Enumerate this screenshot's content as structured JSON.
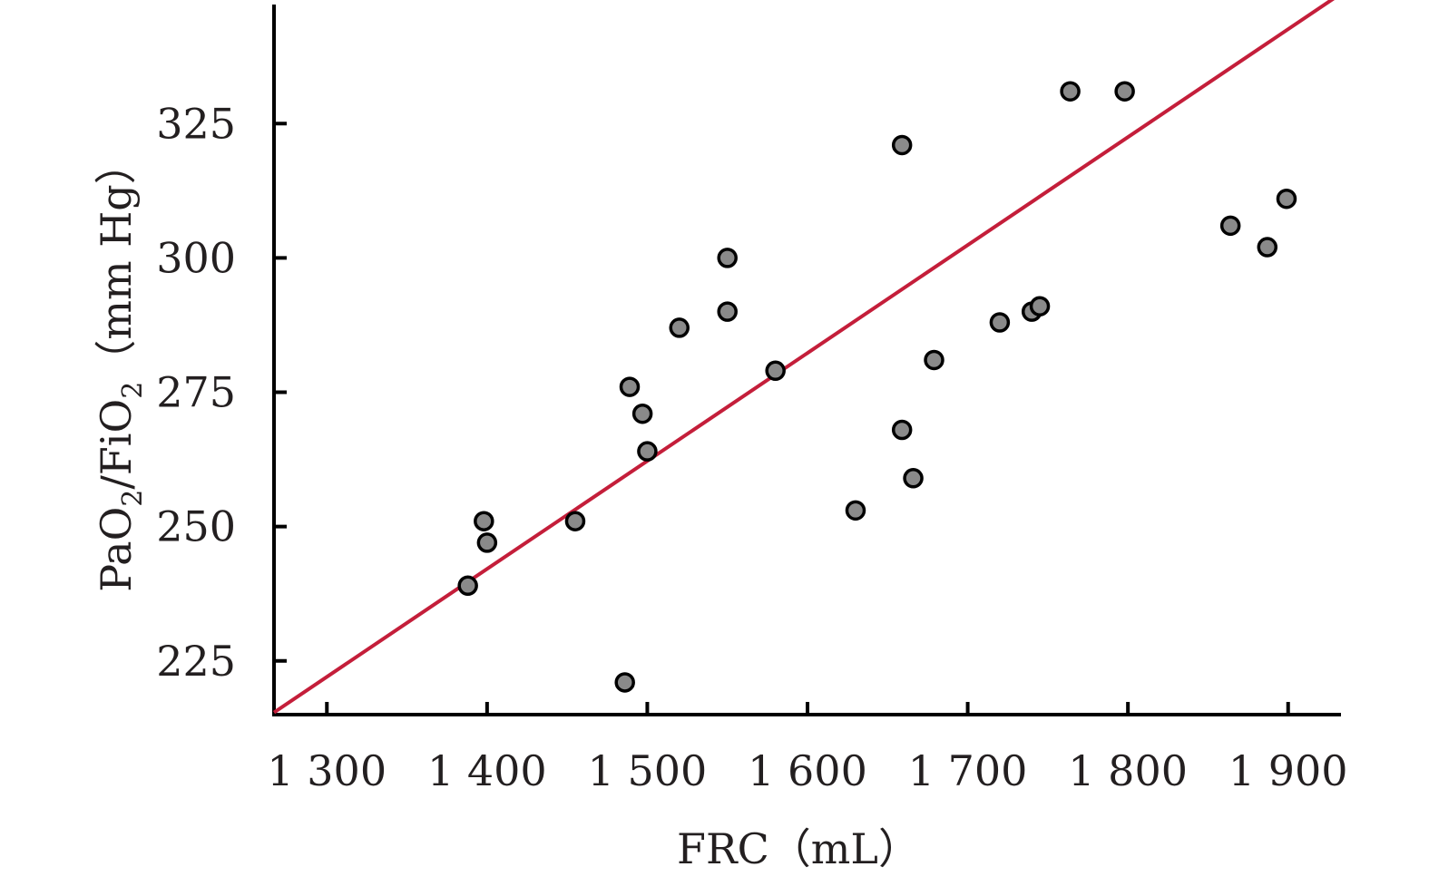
{
  "chart_data": {
    "type": "scatter",
    "title": "",
    "xlabel": "FRC（mL）",
    "ylabel_parts": {
      "a": "PaO",
      "sub1": "2",
      "b": "/FiO",
      "sub2": "2",
      "c": "（mm Hg）"
    },
    "xlim": [
      1267,
      1933
    ],
    "ylim": [
      215,
      348
    ],
    "x_ticks": [
      {
        "value": 1300,
        "label": "1 300"
      },
      {
        "value": 1400,
        "label": "1 400"
      },
      {
        "value": 1500,
        "label": "1 500"
      },
      {
        "value": 1600,
        "label": "1 600"
      },
      {
        "value": 1700,
        "label": "1 700"
      },
      {
        "value": 1800,
        "label": "1 800"
      },
      {
        "value": 1900,
        "label": "1 900"
      }
    ],
    "y_ticks": [
      {
        "value": 225,
        "label": "225"
      },
      {
        "value": 250,
        "label": "250"
      },
      {
        "value": 275,
        "label": "275"
      },
      {
        "value": 300,
        "label": "300"
      },
      {
        "value": 325,
        "label": "325"
      }
    ],
    "points": [
      {
        "x": 1388,
        "y": 239
      },
      {
        "x": 1398,
        "y": 251
      },
      {
        "x": 1400,
        "y": 247
      },
      {
        "x": 1455,
        "y": 251
      },
      {
        "x": 1486,
        "y": 221
      },
      {
        "x": 1489,
        "y": 276
      },
      {
        "x": 1497,
        "y": 271
      },
      {
        "x": 1500,
        "y": 264
      },
      {
        "x": 1520,
        "y": 287
      },
      {
        "x": 1550,
        "y": 300
      },
      {
        "x": 1550,
        "y": 290
      },
      {
        "x": 1580,
        "y": 279
      },
      {
        "x": 1630,
        "y": 253
      },
      {
        "x": 1659,
        "y": 321
      },
      {
        "x": 1659,
        "y": 268
      },
      {
        "x": 1666,
        "y": 259
      },
      {
        "x": 1679,
        "y": 281
      },
      {
        "x": 1720,
        "y": 288
      },
      {
        "x": 1740,
        "y": 290
      },
      {
        "x": 1745,
        "y": 291
      },
      {
        "x": 1764,
        "y": 331
      },
      {
        "x": 1798,
        "y": 331
      },
      {
        "x": 1864,
        "y": 306
      },
      {
        "x": 1887,
        "y": 302
      },
      {
        "x": 1899,
        "y": 311
      }
    ],
    "fit_line": {
      "x": [
        1267,
        1933
      ],
      "y": [
        215.4,
        349.2
      ]
    },
    "grid": false,
    "legend": "none",
    "colors": {
      "points": "#8a8a8a",
      "fit_line": "#c41e3a",
      "axes": "#000000"
    }
  }
}
